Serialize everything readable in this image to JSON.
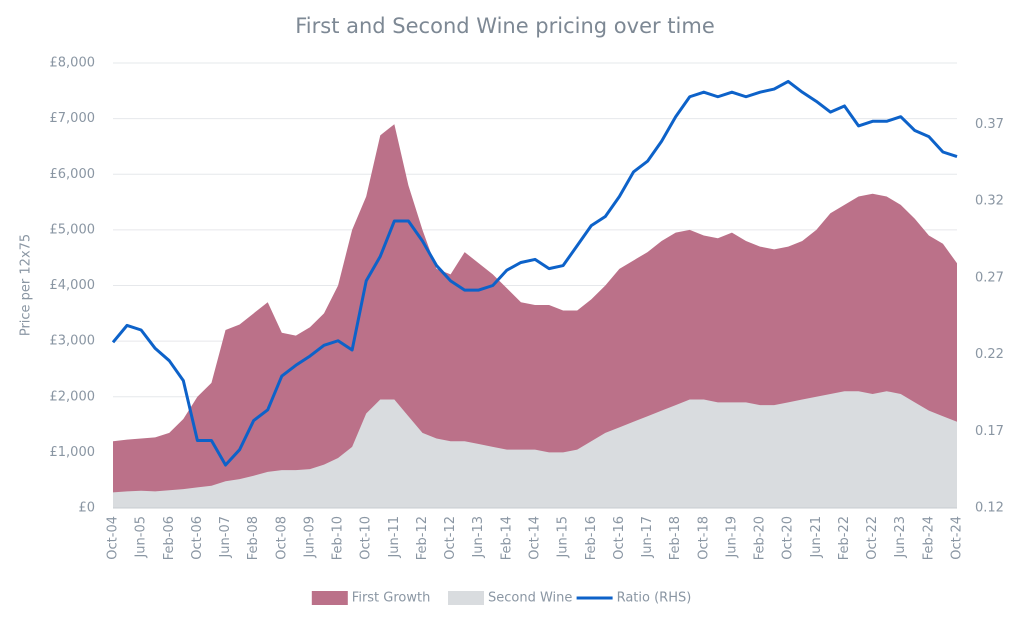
{
  "chart_data": {
    "type": "combo",
    "title": "First and Second Wine pricing over time",
    "ylabel": "Price per 12x75",
    "categories": [
      "Oct-04",
      null,
      "Jun-05",
      null,
      "Feb-06",
      null,
      "Oct-06",
      null,
      "Jun-07",
      null,
      "Feb-08",
      null,
      "Oct-08",
      null,
      "Jun-09",
      null,
      "Feb-10",
      null,
      "Oct-10",
      null,
      "Jun-11",
      null,
      "Feb-12",
      null,
      "Oct-12",
      null,
      "Jun-13",
      null,
      "Feb-14",
      null,
      "Oct-14",
      null,
      "Jun-15",
      null,
      "Feb-16",
      null,
      "Oct-16",
      null,
      "Jun-17",
      null,
      "Feb-18",
      null,
      "Oct-18",
      null,
      "Jun-19",
      null,
      "Feb-20",
      null,
      "Oct-20",
      null,
      "Jun-21",
      null,
      "Feb-22",
      null,
      "Oct-22",
      null,
      "Jun-23",
      null,
      "Feb-24",
      null,
      "Oct-24"
    ],
    "series": [
      {
        "name": "First Growth",
        "type": "area",
        "color": "#bb7189",
        "values": [
          1200,
          1230,
          1250,
          1270,
          1350,
          1600,
          2000,
          2250,
          3200,
          3300,
          3500,
          3700,
          3150,
          3100,
          3250,
          3500,
          4000,
          5000,
          5600,
          6700,
          6900,
          5800,
          5000,
          4300,
          4200,
          4600,
          4400,
          4200,
          3950,
          3700,
          3650,
          3650,
          3550,
          3550,
          3750,
          4000,
          4300,
          4450,
          4600,
          4800,
          4950,
          5000,
          4900,
          4850,
          4950,
          4800,
          4700,
          4650,
          4700,
          4800,
          5000,
          5300,
          5450,
          5600,
          5650,
          5600,
          5450,
          5200,
          4900,
          4750,
          4400
        ]
      },
      {
        "name": "Second Wine",
        "type": "area",
        "color": "#d9dcdf",
        "values": [
          280,
          300,
          310,
          300,
          320,
          340,
          370,
          400,
          480,
          520,
          580,
          650,
          680,
          680,
          700,
          780,
          900,
          1100,
          1700,
          1950,
          1950,
          1650,
          1350,
          1250,
          1200,
          1200,
          1150,
          1100,
          1050,
          1050,
          1050,
          1000,
          1000,
          1050,
          1200,
          1350,
          1450,
          1550,
          1650,
          1750,
          1850,
          1950,
          1950,
          1900,
          1900,
          1900,
          1850,
          1850,
          1900,
          1950,
          2000,
          2050,
          2100,
          2100,
          2050,
          2100,
          2050,
          1900,
          1750,
          1650,
          1550
        ]
      },
      {
        "name": "Ratio (RHS)",
        "type": "line",
        "axis": "y2",
        "color": "#0d62c9",
        "values": [
          0.228,
          0.239,
          0.236,
          0.224,
          0.216,
          0.203,
          0.164,
          0.164,
          0.148,
          0.158,
          0.177,
          0.184,
          0.206,
          0.213,
          0.219,
          0.226,
          0.229,
          0.223,
          0.268,
          0.284,
          0.307,
          0.307,
          0.294,
          0.278,
          0.268,
          0.262,
          0.262,
          0.265,
          0.275,
          0.28,
          0.282,
          0.276,
          0.278,
          0.291,
          0.304,
          0.31,
          0.323,
          0.339,
          0.346,
          0.359,
          0.375,
          0.388,
          0.391,
          0.388,
          0.391,
          0.388,
          0.391,
          0.393,
          0.398,
          0.391,
          0.385,
          0.378,
          0.382,
          0.369,
          0.372,
          0.372,
          0.375,
          0.366,
          0.362,
          0.352,
          0.349
        ]
      }
    ],
    "ylim": [
      0,
      8000
    ],
    "yticks": [
      {
        "value": 0,
        "label": "£0"
      },
      {
        "value": 1000,
        "label": "£1,000"
      },
      {
        "value": 2000,
        "label": "£2,000"
      },
      {
        "value": 3000,
        "label": "£3,000"
      },
      {
        "value": 4000,
        "label": "£4,000"
      },
      {
        "value": 5000,
        "label": "£5,000"
      },
      {
        "value": 6000,
        "label": "£6,000"
      },
      {
        "value": 7000,
        "label": "£7,000"
      },
      {
        "value": 8000,
        "label": "£8,000"
      }
    ],
    "y2lim": [
      0.12,
      0.41
    ],
    "y2ticks": [
      0.12,
      0.17,
      0.22,
      0.27,
      0.32,
      0.37
    ],
    "grid": true,
    "legend": "bottom"
  }
}
